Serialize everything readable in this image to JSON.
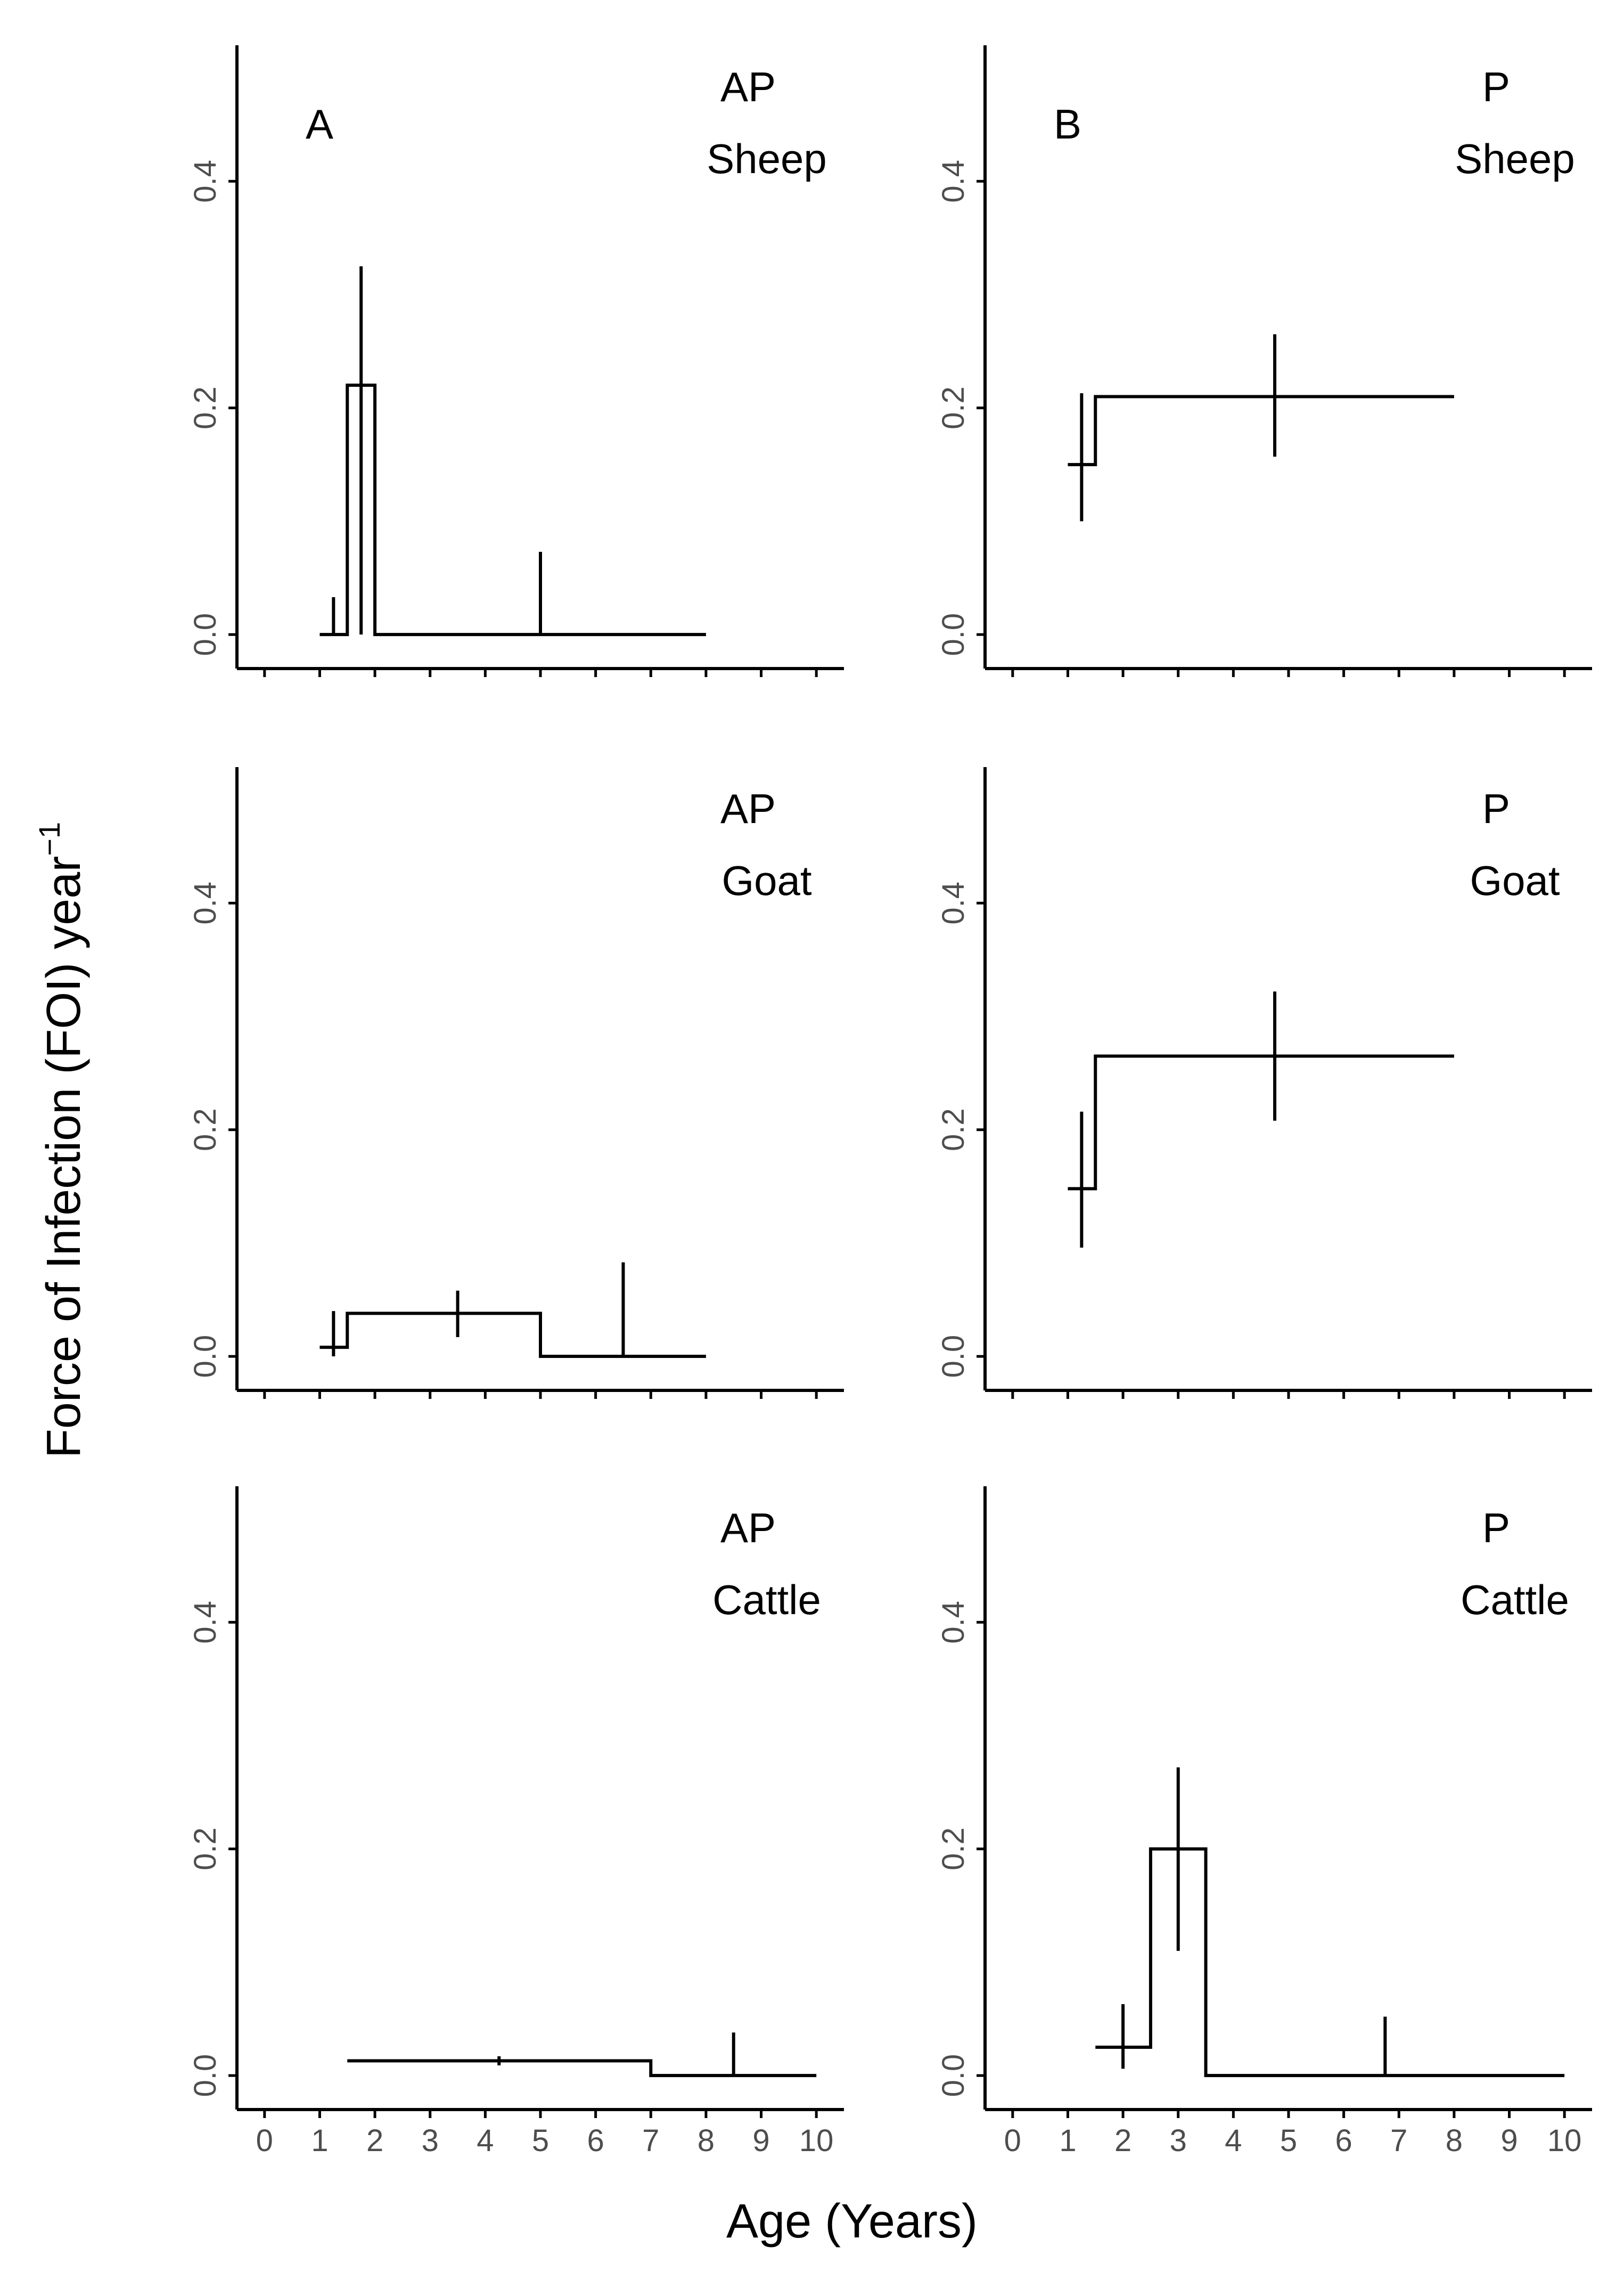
{
  "figure": {
    "ylabel": "Force of Infection (FOI) year",
    "ylabel_superscript": "−1",
    "xlabel": "Age (Years)"
  },
  "chart_data": [
    {
      "type": "step",
      "panel_letter": "A",
      "label_line1": "AP",
      "label_line2": "Sheep",
      "xlim": [
        -0.5,
        10.5
      ],
      "ylim": [
        -0.03,
        0.52
      ],
      "yticks": [
        "0.0",
        "0.2",
        "0.4"
      ],
      "ytick_values": [
        0,
        0.2,
        0.4
      ],
      "show_xtick_labels": false,
      "xticks": [
        "0",
        "1",
        "2",
        "3",
        "4",
        "5",
        "6",
        "7",
        "8",
        "9",
        "10"
      ],
      "steps": [
        {
          "x0": 1.0,
          "x1": 1.5,
          "y": 0.0
        },
        {
          "x0": 1.5,
          "x1": 1.75,
          "y": 0.22
        },
        {
          "x0": 1.75,
          "x1": 2.0,
          "y": 0.22
        },
        {
          "x0": 2.0,
          "x1": 8.0,
          "y": 0.0
        }
      ],
      "errorbars": [
        {
          "x": 1.25,
          "y": 0.0,
          "lo": 0.0,
          "hi": 0.033
        },
        {
          "x": 1.75,
          "y": 0.22,
          "lo": 0.0,
          "hi": 0.325
        },
        {
          "x": 5.0,
          "y": 0.0,
          "lo": 0.0,
          "hi": 0.073
        }
      ]
    },
    {
      "type": "step",
      "panel_letter": "B",
      "label_line1": "P",
      "label_line2": "Sheep",
      "xlim": [
        -0.5,
        10.5
      ],
      "ylim": [
        -0.03,
        0.52
      ],
      "yticks": [
        "0.0",
        "0.2",
        "0.4"
      ],
      "ytick_values": [
        0,
        0.2,
        0.4
      ],
      "show_xtick_labels": false,
      "xticks": [
        "0",
        "1",
        "2",
        "3",
        "4",
        "5",
        "6",
        "7",
        "8",
        "9",
        "10"
      ],
      "steps": [
        {
          "x0": 1.0,
          "x1": 1.5,
          "y": 0.15
        },
        {
          "x0": 1.5,
          "x1": 8.0,
          "y": 0.21
        }
      ],
      "errorbars": [
        {
          "x": 1.25,
          "y": 0.15,
          "lo": 0.1,
          "hi": 0.213
        },
        {
          "x": 4.75,
          "y": 0.21,
          "lo": 0.157,
          "hi": 0.265
        }
      ]
    },
    {
      "type": "step",
      "panel_letter": "",
      "label_line1": "AP",
      "label_line2": "Goat",
      "xlim": [
        -0.5,
        10.5
      ],
      "ylim": [
        -0.03,
        0.52
      ],
      "yticks": [
        "0.0",
        "0.2",
        "0.4"
      ],
      "ytick_values": [
        0,
        0.2,
        0.4
      ],
      "show_xtick_labels": false,
      "xticks": [
        "0",
        "1",
        "2",
        "3",
        "4",
        "5",
        "6",
        "7",
        "8",
        "9",
        "10"
      ],
      "steps": [
        {
          "x0": 1.0,
          "x1": 1.5,
          "y": 0.008
        },
        {
          "x0": 1.5,
          "x1": 5.0,
          "y": 0.038
        },
        {
          "x0": 5.0,
          "x1": 8.0,
          "y": 0.0
        }
      ],
      "errorbars": [
        {
          "x": 1.25,
          "y": 0.008,
          "lo": 0.0,
          "hi": 0.04
        },
        {
          "x": 3.5,
          "y": 0.038,
          "lo": 0.017,
          "hi": 0.058
        },
        {
          "x": 6.5,
          "y": 0.0,
          "lo": 0.0,
          "hi": 0.083
        }
      ]
    },
    {
      "type": "step",
      "panel_letter": "",
      "label_line1": "P",
      "label_line2": "Goat",
      "xlim": [
        -0.5,
        10.5
      ],
      "ylim": [
        -0.03,
        0.52
      ],
      "yticks": [
        "0.0",
        "0.2",
        "0.4"
      ],
      "ytick_values": [
        0,
        0.2,
        0.4
      ],
      "show_xtick_labels": false,
      "xticks": [
        "0",
        "1",
        "2",
        "3",
        "4",
        "5",
        "6",
        "7",
        "8",
        "9",
        "10"
      ],
      "steps": [
        {
          "x0": 1.0,
          "x1": 1.5,
          "y": 0.148
        },
        {
          "x0": 1.5,
          "x1": 8.0,
          "y": 0.265
        }
      ],
      "errorbars": [
        {
          "x": 1.25,
          "y": 0.148,
          "lo": 0.096,
          "hi": 0.216
        },
        {
          "x": 4.75,
          "y": 0.265,
          "lo": 0.208,
          "hi": 0.322
        }
      ]
    },
    {
      "type": "step",
      "panel_letter": "",
      "label_line1": "AP",
      "label_line2": "Cattle",
      "xlim": [
        -0.5,
        10.5
      ],
      "ylim": [
        -0.03,
        0.52
      ],
      "yticks": [
        "0.0",
        "0.2",
        "0.4"
      ],
      "ytick_values": [
        0,
        0.2,
        0.4
      ],
      "show_xtick_labels": true,
      "xticks": [
        "0",
        "1",
        "2",
        "3",
        "4",
        "5",
        "6",
        "7",
        "8",
        "9",
        "10"
      ],
      "steps": [
        {
          "x0": 1.5,
          "x1": 7.0,
          "y": 0.013
        },
        {
          "x0": 7.0,
          "x1": 10.0,
          "y": 0.0
        }
      ],
      "errorbars": [
        {
          "x": 4.25,
          "y": 0.013,
          "lo": 0.009,
          "hi": 0.017
        },
        {
          "x": 8.5,
          "y": 0.0,
          "lo": 0.0,
          "hi": 0.038
        }
      ]
    },
    {
      "type": "step",
      "panel_letter": "",
      "label_line1": "P",
      "label_line2": "Cattle",
      "xlim": [
        -0.5,
        10.5
      ],
      "ylim": [
        -0.03,
        0.52
      ],
      "yticks": [
        "0.0",
        "0.2",
        "0.4"
      ],
      "ytick_values": [
        0,
        0.2,
        0.4
      ],
      "show_xtick_labels": true,
      "xticks": [
        "0",
        "1",
        "2",
        "3",
        "4",
        "5",
        "6",
        "7",
        "8",
        "9",
        "10"
      ],
      "steps": [
        {
          "x0": 1.5,
          "x1": 2.5,
          "y": 0.025
        },
        {
          "x0": 2.5,
          "x1": 3.5,
          "y": 0.2
        },
        {
          "x0": 3.5,
          "x1": 10.0,
          "y": 0.0
        }
      ],
      "errorbars": [
        {
          "x": 2.0,
          "y": 0.025,
          "lo": 0.006,
          "hi": 0.063
        },
        {
          "x": 3.0,
          "y": 0.2,
          "lo": 0.11,
          "hi": 0.272
        },
        {
          "x": 6.75,
          "y": 0.0,
          "lo": 0.0,
          "hi": 0.052
        }
      ]
    }
  ]
}
